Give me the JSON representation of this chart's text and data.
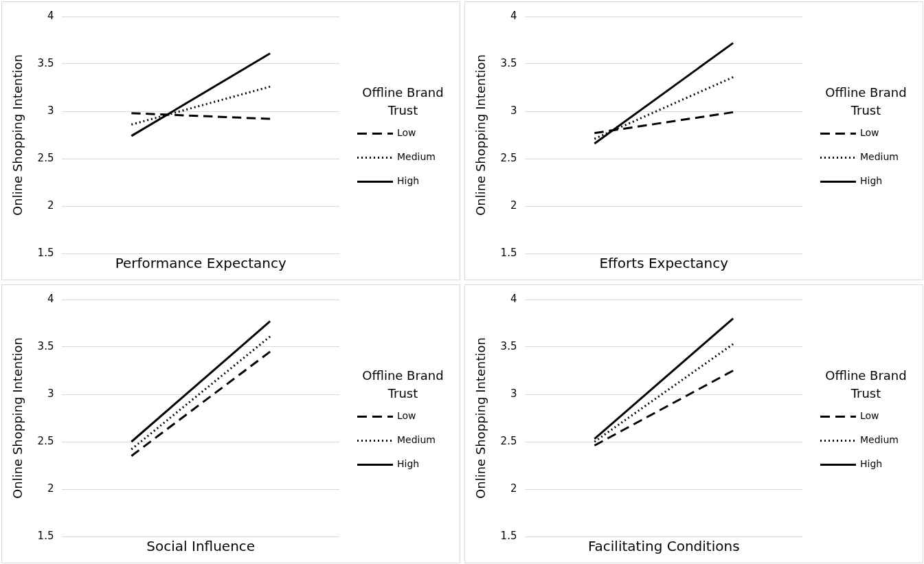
{
  "chart_data": [
    {
      "type": "line",
      "xlabel": "Performance Expectancy",
      "ylabel": "Online Shopping Intention",
      "legend_title": "Offline Brand Trust",
      "categories": [
        null,
        null
      ],
      "ylim": [
        1.5,
        4
      ],
      "yticks": [
        1.5,
        2,
        2.5,
        3,
        3.5,
        4
      ],
      "grid": "y",
      "legend": "right",
      "tick_labels": "y",
      "marker": "none",
      "series": [
        {
          "name": "Low",
          "color": "#000000",
          "line_style": "dashed",
          "values": [
            2.98,
            2.92
          ]
        },
        {
          "name": "Medium",
          "color": "#000000",
          "line_style": "dotted",
          "values": [
            2.86,
            3.26
          ]
        },
        {
          "name": "High",
          "color": "#000000",
          "line_style": "solid",
          "values": [
            2.74,
            3.61
          ]
        }
      ]
    },
    {
      "type": "line",
      "xlabel": "Efforts Expectancy",
      "ylabel": "Online Shopping Intention",
      "legend_title": "Offline Brand Trust",
      "categories": [
        null,
        null
      ],
      "ylim": [
        1.5,
        4
      ],
      "yticks": [
        1.5,
        2,
        2.5,
        3,
        3.5,
        4
      ],
      "grid": "y",
      "legend": "right",
      "tick_labels": "y",
      "marker": "none",
      "series": [
        {
          "name": "Low",
          "color": "#000000",
          "line_style": "dashed",
          "values": [
            2.77,
            2.99
          ]
        },
        {
          "name": "Medium",
          "color": "#000000",
          "line_style": "dotted",
          "values": [
            2.71,
            3.36
          ]
        },
        {
          "name": "High",
          "color": "#000000",
          "line_style": "solid",
          "values": [
            2.66,
            3.72
          ]
        }
      ]
    },
    {
      "type": "line",
      "xlabel": "Social Influence",
      "ylabel": "Online Shopping Intention",
      "legend_title": "Offline Brand Trust",
      "categories": [
        null,
        null
      ],
      "ylim": [
        1.5,
        4
      ],
      "yticks": [
        1.5,
        2,
        2.5,
        3,
        3.5,
        4
      ],
      "grid": "y",
      "legend": "right",
      "tick_labels": "y",
      "marker": "none",
      "series": [
        {
          "name": "Low",
          "color": "#000000",
          "line_style": "dashed",
          "values": [
            2.35,
            3.45
          ]
        },
        {
          "name": "Medium",
          "color": "#000000",
          "line_style": "dotted",
          "values": [
            2.42,
            3.61
          ]
        },
        {
          "name": "High",
          "color": "#000000",
          "line_style": "solid",
          "values": [
            2.5,
            3.77
          ]
        }
      ]
    },
    {
      "type": "line",
      "xlabel": "Facilitating Conditions",
      "ylabel": "Online Shopping Intention",
      "legend_title": "Offline Brand Trust",
      "categories": [
        null,
        null
      ],
      "ylim": [
        1.5,
        4
      ],
      "yticks": [
        1.5,
        2,
        2.5,
        3,
        3.5,
        4
      ],
      "grid": "y",
      "legend": "right",
      "tick_labels": "y",
      "marker": "none",
      "series": [
        {
          "name": "Low",
          "color": "#000000",
          "line_style": "dashed",
          "values": [
            2.46,
            3.25
          ]
        },
        {
          "name": "Medium",
          "color": "#000000",
          "line_style": "dotted",
          "values": [
            2.5,
            3.53
          ]
        },
        {
          "name": "High",
          "color": "#000000",
          "line_style": "solid",
          "values": [
            2.53,
            3.8
          ]
        }
      ]
    }
  ]
}
